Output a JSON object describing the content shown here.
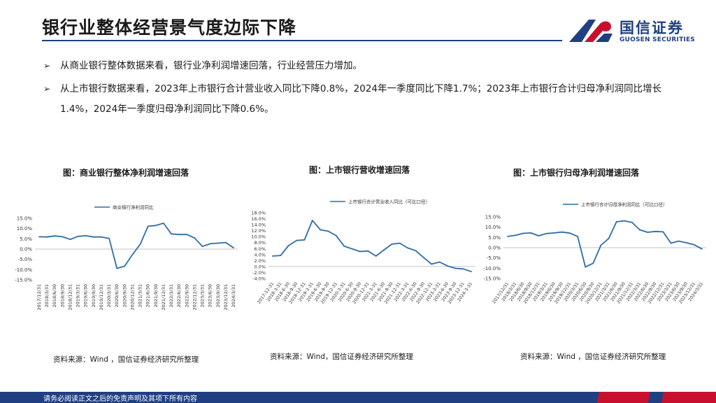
{
  "page": {
    "title": "银行业整体经营景气度边际下降"
  },
  "logo": {
    "name_cn": "国信证券",
    "name_en": "GUOSEN SECURITIES"
  },
  "bullets": [
    "从商业银行整体数据来看，银行业净利润增速回落，行业经营压力增加。",
    "从上市银行数据来看，2023年上市银行合计营业收入同比下降0.8%，2024年一季度同比下降1.7%；2023年上市银行合计归母净利润同比增长1.4%，2024年一季度归母净利润同比下降0.6%。"
  ],
  "footer": {
    "disclaimer": "请务必阅读正文之后的免责声明及其项下所有内容"
  },
  "colors": {
    "brand_blue": "#1f3f82",
    "brand_red": "#c8102e",
    "line": "#2e6da4"
  },
  "chart_data": [
    {
      "type": "line",
      "title": "图：商业银行整体净利润增速回落",
      "legend": "商业银行净利润同比",
      "source": "资料来源：Wind ，国信证券经济研究所整理",
      "ylim": [
        -15,
        15
      ],
      "yticks": [
        "15.0%",
        "10.0%",
        "5.0%",
        "0.0%",
        "-5.0%",
        "-10.0%",
        "-15.0%"
      ],
      "ytick_values": [
        15,
        10,
        5,
        0,
        -5,
        -10,
        -15
      ],
      "x": [
        "2017/12/31",
        "2018/3/31",
        "2018/6/30",
        "2018/9/30",
        "2018/12/31",
        "2019/3/31",
        "2019/6/30",
        "2019/9/30",
        "2019/12/31",
        "2020/3/31",
        "2020/6/30",
        "2020/9/30",
        "2020/12/31",
        "2021/3/31",
        "2021/6/30",
        "2021/9/30",
        "2021/12/31",
        "2022/3/31",
        "2022/6/30",
        "2022/9/30",
        "2022/12/31",
        "2023/3/31",
        "2023/6/30",
        "2023/9/30",
        "2023/12/31",
        "2024/3/31"
      ],
      "values": [
        6.0,
        5.9,
        6.4,
        6.0,
        4.7,
        6.2,
        6.5,
        5.9,
        5.9,
        5.2,
        -9.4,
        -8.3,
        -2.7,
        2.4,
        11.1,
        11.5,
        12.6,
        7.4,
        7.1,
        7.1,
        5.4,
        1.3,
        2.6,
        2.9,
        3.2,
        0.6
      ],
      "grid": false,
      "legend_position": "top"
    },
    {
      "type": "line",
      "title": "图：上市银行营收增速回落",
      "legend": "上市银行合计营业收入同比（可比口径）",
      "source": "资料来源：Wind，国信证券经济研究所整理",
      "ylim": [
        -4,
        18
      ],
      "yticks": [
        "18.0%",
        "16.0%",
        "14.0%",
        "12.0%",
        "10.0%",
        "8.0%",
        "6.0%",
        "4.0%",
        "2.0%",
        "0.0%",
        "-2.0%",
        "-4.0%"
      ],
      "ytick_values": [
        18,
        16,
        14,
        12,
        10,
        8,
        6,
        4,
        2,
        0,
        -2,
        -4
      ],
      "x": [
        "2017-12-31",
        "2018-3-31",
        "2018-6-30",
        "2018-9-30",
        "2018-12-31",
        "2019-3-31",
        "2019-6-30",
        "2019-9-30",
        "2019-12-31",
        "2020-3-31",
        "2020-6-30",
        "2020-9-30",
        "2020-12-31",
        "2021-3-31",
        "2021-6-30",
        "2021-9-30",
        "2021-12-31",
        "2022-3-31",
        "2022-6-30",
        "2022-9-30",
        "2022-12-31",
        "2023-3-31",
        "2023-6-30",
        "2023-9-30",
        "2023-12-31",
        "2024-3-31"
      ],
      "values": [
        3.5,
        3.7,
        7.0,
        8.7,
        8.9,
        15.4,
        12.3,
        11.8,
        10.3,
        6.8,
        5.9,
        5.0,
        5.2,
        3.5,
        5.5,
        7.5,
        7.8,
        6.2,
        5.3,
        3.0,
        0.8,
        1.5,
        0.2,
        -0.6,
        -0.8,
        -1.7
      ],
      "grid": false,
      "legend_position": "top"
    },
    {
      "type": "line",
      "title": "图：上市银行归母净利润增速回落",
      "legend": "上市银行合计归母净利润同比（可比口径）",
      "source": "资料来源：Wind ，国信证券经济研究所整理",
      "ylim": [
        -15,
        15
      ],
      "yticks": [
        "15.0%",
        "10.0%",
        "5.0%",
        "0.0%",
        "-5.0%",
        "-10.0%",
        "-15.0%"
      ],
      "ytick_values": [
        15,
        10,
        5,
        0,
        -5,
        -10,
        -15
      ],
      "x": [
        "2017/12/31",
        "2018/3/31",
        "2018/6/30",
        "2018/9/30",
        "2018/12/31",
        "2019/3/31",
        "2019/6/30",
        "2019/9/30",
        "2019/12/31",
        "2020/3/31",
        "2020/6/30",
        "2020/9/30",
        "2020/12/31",
        "2021/3/31",
        "2021/6/30",
        "2021/9/30",
        "2021/12/31",
        "2022/3/31",
        "2022/6/30",
        "2022/9/30",
        "2022/12/31",
        "2023/3/31",
        "2023/6/30",
        "2023/9/30",
        "2023/12/31",
        "2024/3/31"
      ],
      "values": [
        5.5,
        6.0,
        7.0,
        7.2,
        5.8,
        6.9,
        7.2,
        7.6,
        7.1,
        5.5,
        -9.4,
        -7.6,
        1.2,
        4.5,
        12.6,
        13.1,
        12.3,
        8.7,
        7.5,
        7.9,
        7.7,
        2.2,
        3.2,
        2.4,
        1.4,
        -0.6
      ],
      "grid": false,
      "legend_position": "top"
    }
  ]
}
